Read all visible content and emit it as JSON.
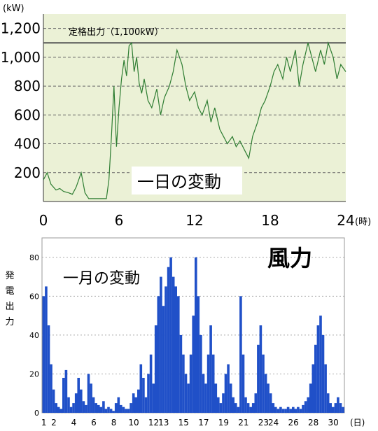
{
  "title": "風力",
  "chart_data": [
    {
      "type": "line",
      "annotation": "一日の変動",
      "ylabel_unit": "(kW)",
      "xlabel_unit": "(時)",
      "xlim": [
        0,
        24
      ],
      "ylim": [
        0,
        1300
      ],
      "x_ticks": [
        "0",
        "6",
        "12",
        "18",
        "24"
      ],
      "x_tick_values": [
        0,
        6,
        12,
        18,
        24
      ],
      "y_ticks": [
        "200",
        "400",
        "600",
        "800",
        "1,000",
        "1,200"
      ],
      "y_tick_values": [
        200,
        400,
        600,
        800,
        1000,
        1200
      ],
      "rated_output": {
        "label": "定格出力（1,100kW）",
        "value": 1100
      },
      "background": "#ebf1d6",
      "line_color": "#2e7d32",
      "grid": "dashed",
      "x": [
        0.0,
        0.3,
        0.6,
        1.0,
        1.3,
        1.6,
        2.0,
        2.3,
        2.6,
        3.0,
        3.3,
        3.6,
        4.0,
        4.3,
        4.6,
        5.0,
        5.2,
        5.4,
        5.6,
        5.8,
        6.0,
        6.2,
        6.4,
        6.6,
        6.8,
        7.0,
        7.2,
        7.4,
        7.6,
        7.8,
        8.0,
        8.3,
        8.6,
        9.0,
        9.3,
        9.6,
        10.0,
        10.3,
        10.6,
        11.0,
        11.3,
        11.6,
        12.0,
        12.3,
        12.6,
        13.0,
        13.3,
        13.6,
        14.0,
        14.3,
        14.6,
        15.0,
        15.3,
        15.6,
        16.0,
        16.3,
        16.6,
        17.0,
        17.3,
        17.6,
        18.0,
        18.3,
        18.6,
        19.0,
        19.3,
        19.6,
        20.0,
        20.3,
        20.6,
        21.0,
        21.3,
        21.6,
        22.0,
        22.3,
        22.6,
        23.0,
        23.3,
        23.6,
        24.0
      ],
      "y": [
        150,
        200,
        120,
        80,
        90,
        70,
        60,
        50,
        100,
        200,
        60,
        20,
        20,
        20,
        20,
        20,
        150,
        450,
        800,
        380,
        650,
        850,
        980,
        870,
        1080,
        1100,
        900,
        1000,
        820,
        750,
        850,
        700,
        650,
        780,
        600,
        720,
        800,
        900,
        1050,
        950,
        800,
        700,
        760,
        650,
        600,
        700,
        550,
        650,
        500,
        450,
        400,
        450,
        380,
        420,
        350,
        300,
        450,
        550,
        650,
        700,
        800,
        900,
        950,
        850,
        1000,
        900,
        1050,
        800,
        950,
        1100,
        1000,
        900,
        1050,
        950,
        1100,
        1000,
        850,
        950,
        900
      ]
    },
    {
      "type": "bar",
      "annotation": "一月の変動",
      "ylabel": "発電出力",
      "xlabel_unit": "(日)",
      "xlim": [
        1,
        31
      ],
      "ylim": [
        0,
        90
      ],
      "x_ticks": [
        "1",
        "2",
        "4",
        "6",
        "8",
        "10",
        "12",
        "13",
        "15",
        "17",
        "19",
        "21",
        "23",
        "24",
        "26",
        "28",
        "30"
      ],
      "x_tick_values": [
        1,
        2,
        4,
        6,
        8,
        10,
        12,
        13,
        15,
        17,
        19,
        21,
        23,
        24,
        26,
        28,
        30
      ],
      "y_ticks": [
        "0",
        "20",
        "40",
        "60",
        "80"
      ],
      "y_tick_values": [
        0,
        20,
        40,
        60,
        80
      ],
      "bar_color": "#2050c8",
      "grid": "dotted",
      "x": [
        1.0,
        1.25,
        1.5,
        1.75,
        2.0,
        2.25,
        2.5,
        2.75,
        3.0,
        3.25,
        3.5,
        3.75,
        4.0,
        4.25,
        4.5,
        4.75,
        5.0,
        5.25,
        5.5,
        5.75,
        6.0,
        6.25,
        6.5,
        6.75,
        7.0,
        7.25,
        7.5,
        7.75,
        8.0,
        8.25,
        8.5,
        8.75,
        9.0,
        9.25,
        9.5,
        9.75,
        10.0,
        10.25,
        10.5,
        10.75,
        11.0,
        11.25,
        11.5,
        11.75,
        12.0,
        12.25,
        12.5,
        12.75,
        13.0,
        13.25,
        13.5,
        13.75,
        14.0,
        14.25,
        14.5,
        14.75,
        15.0,
        15.25,
        15.5,
        15.75,
        16.0,
        16.25,
        16.5,
        16.75,
        17.0,
        17.25,
        17.5,
        17.75,
        18.0,
        18.25,
        18.5,
        18.75,
        19.0,
        19.25,
        19.5,
        19.75,
        20.0,
        20.25,
        20.5,
        20.75,
        21.0,
        21.25,
        21.5,
        21.75,
        22.0,
        22.25,
        22.5,
        22.75,
        23.0,
        23.25,
        23.5,
        23.75,
        24.0,
        24.25,
        24.5,
        24.75,
        25.0,
        25.25,
        25.5,
        25.75,
        26.0,
        26.25,
        26.5,
        26.75,
        27.0,
        27.25,
        27.5,
        27.75,
        28.0,
        28.25,
        28.5,
        28.75,
        29.0,
        29.25,
        29.5,
        29.75,
        30.0,
        30.25,
        30.5,
        30.75,
        31.0
      ],
      "y": [
        60,
        65,
        45,
        25,
        12,
        5,
        3,
        2,
        18,
        22,
        8,
        3,
        5,
        10,
        18,
        12,
        6,
        4,
        20,
        15,
        8,
        5,
        4,
        3,
        6,
        2,
        3,
        2,
        1,
        5,
        8,
        4,
        3,
        2,
        2,
        5,
        10,
        8,
        12,
        25,
        18,
        8,
        20,
        30,
        15,
        45,
        60,
        70,
        55,
        65,
        75,
        80,
        70,
        65,
        60,
        40,
        30,
        20,
        15,
        30,
        50,
        80,
        60,
        40,
        20,
        15,
        30,
        45,
        30,
        15,
        8,
        5,
        10,
        20,
        25,
        15,
        8,
        5,
        3,
        60,
        30,
        8,
        5,
        3,
        5,
        10,
        35,
        45,
        30,
        20,
        15,
        10,
        5,
        3,
        2,
        3,
        2,
        2,
        3,
        2,
        3,
        2,
        3,
        2,
        4,
        6,
        8,
        15,
        25,
        35,
        45,
        50,
        40,
        25,
        10,
        5,
        3,
        5,
        8,
        5,
        3
      ]
    }
  ]
}
